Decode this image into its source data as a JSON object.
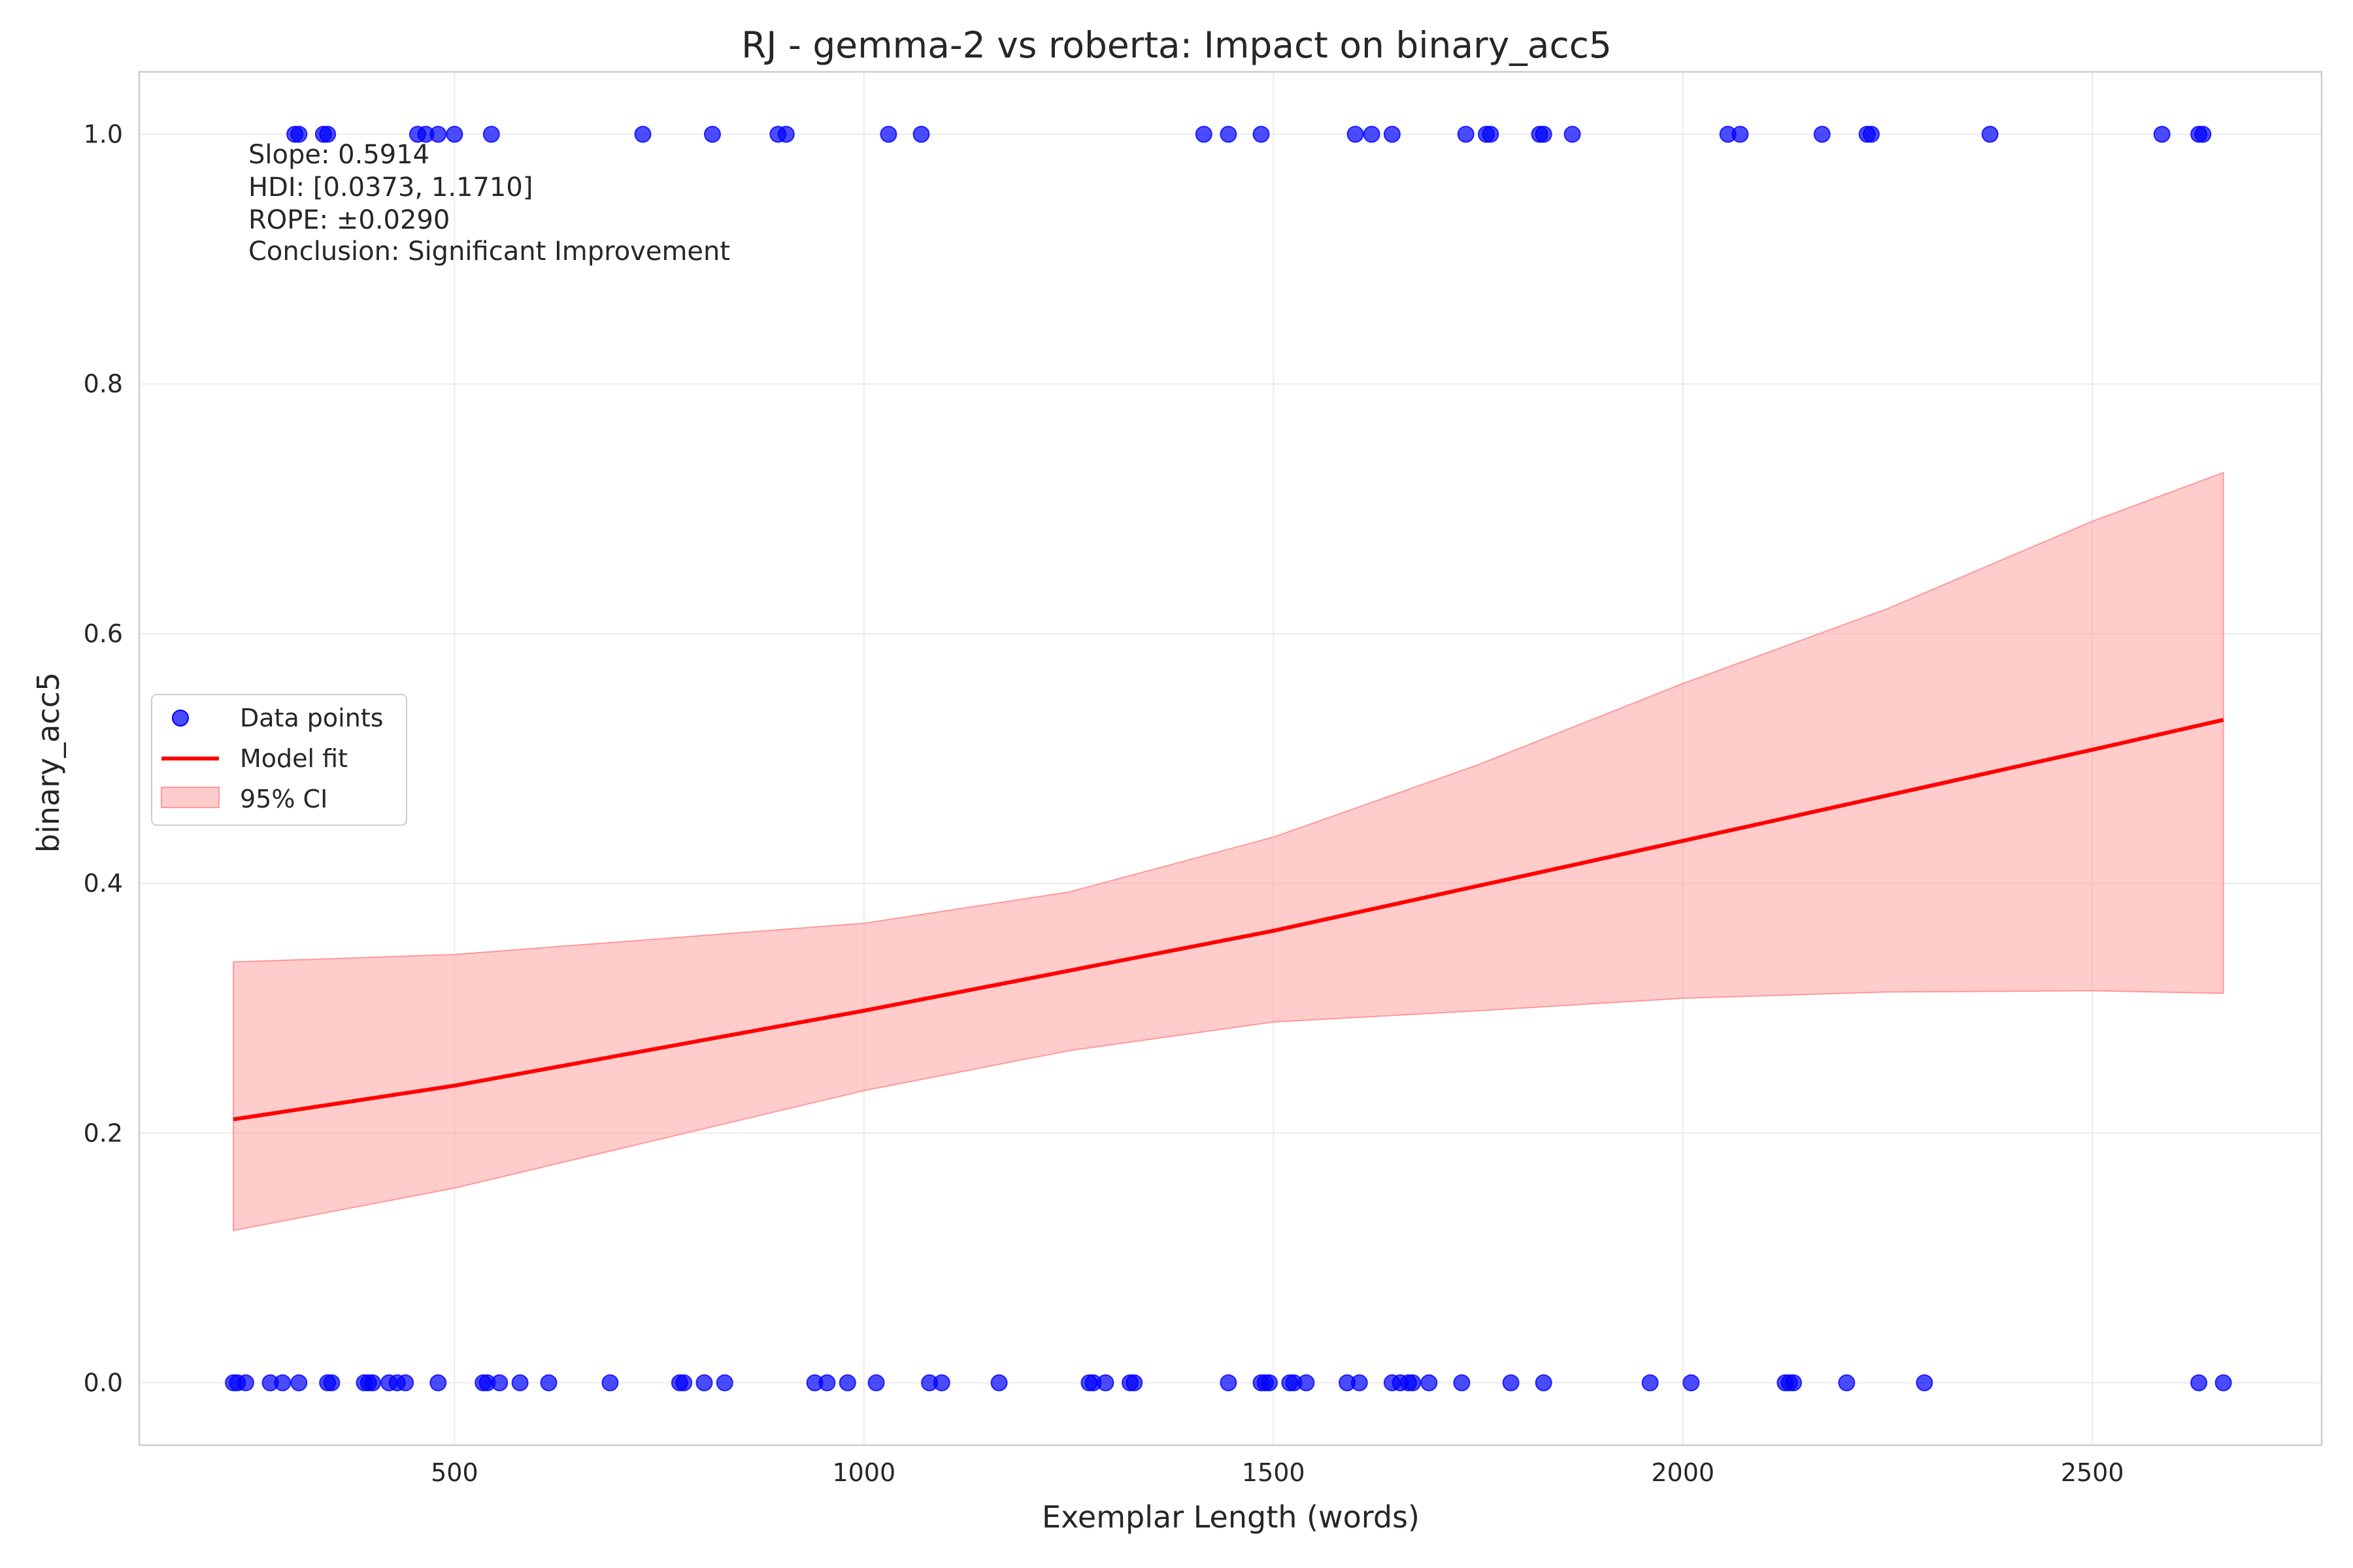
{
  "chart_data": {
    "type": "scatter",
    "title": "RJ - gemma-2 vs roberta: Impact on binary_acc5",
    "xlabel": "Exemplar Length (words)",
    "ylabel": "binary_acc5",
    "xlim": [
      115,
      2780
    ],
    "ylim": [
      -0.05,
      1.05
    ],
    "xticks": [
      500,
      1000,
      1500,
      2000,
      2500
    ],
    "yticks": [
      0.0,
      0.2,
      0.4,
      0.6,
      0.8,
      1.0
    ],
    "xtick_labels": [
      "500",
      "1000",
      "1500",
      "2000",
      "2500"
    ],
    "ytick_labels": [
      "0.0",
      "0.2",
      "0.4",
      "0.6",
      "0.8",
      "1.0"
    ],
    "grid": true,
    "legend": {
      "placement": "center-left",
      "entries": [
        "Data points",
        "Model fit",
        "95% CI"
      ]
    },
    "annotations": [
      "Slope: 0.5914",
      "HDI: [0.0373, 1.1710]",
      "ROPE: ±0.0290",
      "Conclusion: Significant Improvement"
    ],
    "series": [
      {
        "name": "Data points",
        "kind": "scatter",
        "color": "#0000ff",
        "x": [
          305,
          310,
          340,
          345,
          455,
          465,
          480,
          500,
          545,
          730,
          815,
          895,
          905,
          1030,
          1070,
          1415,
          1445,
          1485,
          1600,
          1620,
          1645,
          1735,
          1760,
          1765,
          1825,
          1830,
          1865,
          2055,
          2070,
          2170,
          2225,
          2230,
          2375,
          2585,
          2630,
          2635,
          230,
          235,
          245,
          275,
          290,
          310,
          345,
          350,
          390,
          395,
          400,
          420,
          430,
          440,
          480,
          535,
          540,
          555,
          580,
          615,
          690,
          775,
          780,
          805,
          830,
          940,
          955,
          980,
          1015,
          1080,
          1095,
          1165,
          1275,
          1280,
          1295,
          1325,
          1330,
          1445,
          1485,
          1490,
          1495,
          1520,
          1525,
          1540,
          1590,
          1605,
          1645,
          1655,
          1665,
          1670,
          1690,
          1730,
          1790,
          1830,
          1960,
          2010,
          2125,
          2130,
          2135,
          2200,
          2295,
          2630,
          2660
        ],
        "y": [
          1,
          1,
          1,
          1,
          1,
          1,
          1,
          1,
          1,
          1,
          1,
          1,
          1,
          1,
          1,
          1,
          1,
          1,
          1,
          1,
          1,
          1,
          1,
          1,
          1,
          1,
          1,
          1,
          1,
          1,
          1,
          1,
          1,
          1,
          1,
          1,
          0,
          0,
          0,
          0,
          0,
          0,
          0,
          0,
          0,
          0,
          0,
          0,
          0,
          0,
          0,
          0,
          0,
          0,
          0,
          0,
          0,
          0,
          0,
          0,
          0,
          0,
          0,
          0,
          0,
          0,
          0,
          0,
          0,
          0,
          0,
          0,
          0,
          0,
          0,
          0,
          0,
          0,
          0,
          0,
          0,
          0,
          0,
          0,
          0,
          0,
          0,
          0,
          0,
          0,
          0,
          0,
          0,
          0,
          0,
          0,
          0,
          0,
          0
        ]
      },
      {
        "name": "Model fit",
        "kind": "line",
        "color": "#ff0000",
        "x": [
          230,
          500,
          1000,
          1500,
          2000,
          2500,
          2660
        ],
        "y": [
          0.211,
          0.238,
          0.298,
          0.362,
          0.434,
          0.507,
          0.531
        ]
      },
      {
        "name": "95% CI",
        "kind": "band",
        "color": "#ff9999",
        "x": [
          230,
          500,
          1000,
          1250,
          1500,
          1750,
          2000,
          2250,
          2500,
          2660
        ],
        "lower": [
          0.122,
          0.156,
          0.234,
          0.266,
          0.289,
          0.298,
          0.308,
          0.313,
          0.314,
          0.312
        ],
        "upper": [
          0.337,
          0.343,
          0.368,
          0.393,
          0.437,
          0.495,
          0.56,
          0.62,
          0.69,
          0.729
        ]
      }
    ]
  }
}
